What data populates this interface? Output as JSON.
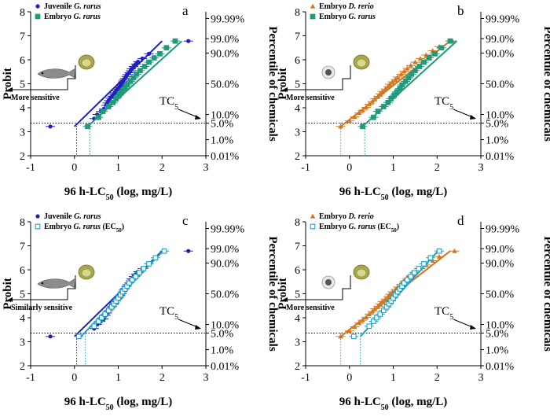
{
  "colors": {
    "juvenile_gr": "#1f1fbf",
    "embryo_gr": "#1f9b7a",
    "embryo_gr_ec50": "#1ba4c4",
    "embryo_dr": "#d2771f"
  },
  "chart_data": [
    {
      "type": "scatter",
      "panel_letter": "a",
      "xlabel": "96 h-LC",
      "xlabel_sub": "50",
      "xlabel_tail": " (log, mg/L)",
      "ylabel": "Probit",
      "ylabel_right": "Percentile of chemicals",
      "xlim": [
        -1,
        3
      ],
      "ylim": [
        2,
        8
      ],
      "xticks": [
        "-1",
        "0",
        "1",
        "2",
        "3"
      ],
      "yticks": [
        "2",
        "3",
        "4",
        "5",
        "6",
        "7",
        "8"
      ],
      "right_ticks": [
        {
          "probit": 7.72,
          "label": "99.99%"
        },
        {
          "probit": 6.88,
          "label": "99.0%"
        },
        {
          "probit": 6.28,
          "label": "90.0%"
        },
        {
          "probit": 5.0,
          "label": "50.0%"
        },
        {
          "probit": 3.72,
          "label": "10.0%"
        },
        {
          "probit": 3.36,
          "label": "5.0%"
        },
        {
          "probit": 2.67,
          "label": "1.0%"
        },
        {
          "probit": 2.0,
          "label": "0.01%"
        }
      ],
      "tc_label": "TC",
      "tc_sub": "5",
      "annotation": "More sensitive",
      "icons": [
        "fish-icon",
        "embryo-icon"
      ],
      "series": [
        {
          "name_prefix": "Juvenile ",
          "name_italic": "G. rarus",
          "name_suffix": "",
          "marker": "circle",
          "filled": true,
          "color": "#1f1fbf",
          "x": [
            -0.55,
            0.45,
            0.52,
            0.6,
            0.67,
            0.72,
            0.75,
            0.78,
            0.82,
            0.86,
            0.9,
            0.92,
            0.95,
            0.98,
            1.02,
            1.05,
            1.08,
            1.1,
            1.12,
            1.15,
            1.18,
            1.2,
            1.25,
            1.28,
            1.3,
            1.35,
            1.4,
            1.45,
            1.55,
            1.7,
            2.6
          ],
          "y": [
            3.22,
            3.55,
            3.72,
            3.85,
            3.95,
            4.1,
            4.2,
            4.3,
            4.4,
            4.48,
            4.56,
            4.62,
            4.7,
            4.78,
            4.85,
            4.92,
            5.0,
            5.08,
            5.15,
            5.22,
            5.3,
            5.38,
            5.46,
            5.54,
            5.62,
            5.72,
            5.82,
            5.92,
            6.05,
            6.25,
            6.78
          ],
          "fit": [
            [
              0.0,
              3.22
            ],
            [
              2.0,
              6.78
            ]
          ],
          "tc_x": 0.05
        },
        {
          "name_prefix": "Embryo ",
          "name_italic": "G. rarus",
          "name_suffix": "",
          "marker": "square",
          "filled": true,
          "color": "#1f9b7a",
          "x": [
            0.3,
            0.55,
            0.65,
            0.78,
            0.88,
            0.95,
            1.02,
            1.08,
            1.15,
            1.2,
            1.28,
            1.35,
            1.42,
            1.5,
            1.6,
            1.7,
            1.82,
            1.95,
            2.1,
            2.3
          ],
          "y": [
            3.22,
            3.6,
            3.85,
            4.05,
            4.22,
            4.38,
            4.52,
            4.66,
            4.8,
            4.95,
            5.1,
            5.25,
            5.4,
            5.55,
            5.72,
            5.9,
            6.08,
            6.25,
            6.5,
            6.78
          ],
          "fit": [
            [
              0.3,
              3.22
            ],
            [
              2.45,
              6.78
            ]
          ],
          "tc_x": 0.35
        }
      ]
    },
    {
      "type": "scatter",
      "panel_letter": "b",
      "xlabel": "96 h-LC",
      "xlabel_sub": "50",
      "xlabel_tail": " (log, mg/L)",
      "ylabel": "Probit",
      "ylabel_right": "Percentile of chemicals",
      "xlim": [
        -1,
        3
      ],
      "ylim": [
        2,
        8
      ],
      "xticks": [
        "-1",
        "0",
        "1",
        "2",
        "3"
      ],
      "yticks": [
        "2",
        "3",
        "4",
        "5",
        "6",
        "7",
        "8"
      ],
      "right_ticks": [
        {
          "probit": 7.72,
          "label": "99.99%"
        },
        {
          "probit": 6.88,
          "label": "99.0%"
        },
        {
          "probit": 6.28,
          "label": "90.0%"
        },
        {
          "probit": 5.0,
          "label": "50.0%"
        },
        {
          "probit": 3.72,
          "label": "10.0%"
        },
        {
          "probit": 3.36,
          "label": "5.0%"
        },
        {
          "probit": 2.67,
          "label": "1.0%"
        },
        {
          "probit": 2.0,
          "label": "0.01%"
        }
      ],
      "tc_label": "TC",
      "tc_sub": "5",
      "annotation": "More sensitive",
      "icons": [
        "embryo-dr-icon",
        "embryo-icon"
      ],
      "series": [
        {
          "name_prefix": "Embryo ",
          "name_italic": "D. rerio",
          "name_suffix": "",
          "marker": "triangle",
          "filled": true,
          "color": "#d2771f",
          "x": [
            -0.2,
            0.0,
            0.12,
            0.22,
            0.3,
            0.38,
            0.45,
            0.52,
            0.58,
            0.65,
            0.7,
            0.75,
            0.82,
            0.88,
            0.92,
            0.98,
            1.05,
            1.1,
            1.18,
            1.25,
            1.32,
            1.4,
            1.5,
            1.62,
            1.75,
            1.9,
            2.05,
            2.35
          ],
          "y": [
            3.22,
            3.45,
            3.62,
            3.78,
            3.9,
            4.02,
            4.15,
            4.26,
            4.38,
            4.48,
            4.58,
            4.68,
            4.78,
            4.88,
            4.98,
            5.08,
            5.18,
            5.28,
            5.4,
            5.52,
            5.64,
            5.76,
            5.9,
            6.05,
            6.2,
            6.38,
            6.55,
            6.78
          ],
          "fit": [
            [
              -0.2,
              3.22
            ],
            [
              2.3,
              6.78
            ]
          ],
          "tc_x": -0.2
        },
        {
          "name_prefix": "Embryo ",
          "name_italic": "G. rarus",
          "name_suffix": "",
          "marker": "square",
          "filled": true,
          "color": "#1f9b7a",
          "x": [
            0.3,
            0.55,
            0.65,
            0.78,
            0.88,
            0.95,
            1.02,
            1.08,
            1.15,
            1.2,
            1.28,
            1.35,
            1.42,
            1.5,
            1.6,
            1.7,
            1.82,
            1.95,
            2.1,
            2.3
          ],
          "y": [
            3.22,
            3.6,
            3.85,
            4.05,
            4.22,
            4.38,
            4.52,
            4.66,
            4.8,
            4.95,
            5.1,
            5.25,
            5.4,
            5.55,
            5.72,
            5.9,
            6.08,
            6.25,
            6.5,
            6.78
          ],
          "fit": [
            [
              0.3,
              3.22
            ],
            [
              2.45,
              6.78
            ]
          ],
          "tc_x": 0.35
        }
      ]
    },
    {
      "type": "scatter",
      "panel_letter": "c",
      "xlabel": "96 h-LC",
      "xlabel_sub": "50",
      "xlabel_tail": " (log, mg/L)",
      "ylabel": "Probit",
      "ylabel_right": "Percentile of chemicals",
      "xlim": [
        -1,
        3
      ],
      "ylim": [
        2,
        8
      ],
      "xticks": [
        "-1",
        "0",
        "1",
        "2",
        "3"
      ],
      "yticks": [
        "2",
        "3",
        "4",
        "5",
        "6",
        "7",
        "8"
      ],
      "right_ticks": [
        {
          "probit": 7.72,
          "label": "99.99%"
        },
        {
          "probit": 6.88,
          "label": "99.0%"
        },
        {
          "probit": 6.28,
          "label": "90.0%"
        },
        {
          "probit": 5.0,
          "label": "50.0%"
        },
        {
          "probit": 3.72,
          "label": "10.0%"
        },
        {
          "probit": 3.36,
          "label": "5.0%"
        },
        {
          "probit": 2.67,
          "label": "1.0%"
        },
        {
          "probit": 2.0,
          "label": "0.01%"
        }
      ],
      "tc_label": "TC",
      "tc_sub": "5",
      "annotation": "Similarly sensitive",
      "icons": [
        "fish-icon",
        "embryo-icon"
      ],
      "series": [
        {
          "name_prefix": "Juvenile ",
          "name_italic": "G. rarus",
          "name_suffix": "",
          "marker": "circle",
          "filled": true,
          "color": "#1f1fbf",
          "x": [
            -0.55,
            0.45,
            0.52,
            0.6,
            0.67,
            0.72,
            0.75,
            0.78,
            0.82,
            0.86,
            0.9,
            0.92,
            0.95,
            0.98,
            1.02,
            1.05,
            1.08,
            1.1,
            1.12,
            1.15,
            1.18,
            1.2,
            1.25,
            1.28,
            1.3,
            1.35,
            1.4,
            1.45,
            1.55,
            1.7,
            2.6
          ],
          "y": [
            3.22,
            3.55,
            3.72,
            3.85,
            3.95,
            4.1,
            4.2,
            4.3,
            4.4,
            4.48,
            4.56,
            4.62,
            4.7,
            4.78,
            4.85,
            4.92,
            5.0,
            5.08,
            5.15,
            5.22,
            5.3,
            5.38,
            5.46,
            5.54,
            5.62,
            5.72,
            5.82,
            5.92,
            6.05,
            6.25,
            6.78
          ],
          "fit": [
            [
              0.0,
              3.22
            ],
            [
              2.0,
              6.78
            ]
          ],
          "tc_x": 0.05
        },
        {
          "name_prefix": "Embryo ",
          "name_italic": "G. rarus",
          "name_suffix": " (EC",
          "name_sub": "50",
          "name_close": ")",
          "marker": "square",
          "filled": false,
          "color": "#1ba4c4",
          "x": [
            0.1,
            0.45,
            0.55,
            0.62,
            0.7,
            0.78,
            0.85,
            0.9,
            0.95,
            1.0,
            1.05,
            1.1,
            1.15,
            1.2,
            1.25,
            1.32,
            1.4,
            1.48,
            1.58,
            1.7,
            1.85,
            2.05
          ],
          "y": [
            3.22,
            3.65,
            3.85,
            4.0,
            4.15,
            4.3,
            4.45,
            4.58,
            4.7,
            4.82,
            4.95,
            5.08,
            5.2,
            5.32,
            5.45,
            5.58,
            5.72,
            5.88,
            6.05,
            6.25,
            6.5,
            6.78
          ],
          "fit": [
            [
              0.15,
              3.22
            ],
            [
              2.02,
              6.78
            ]
          ],
          "tc_x": 0.25
        }
      ]
    },
    {
      "type": "scatter",
      "panel_letter": "d",
      "xlabel": "96 h-LC",
      "xlabel_sub": "50",
      "xlabel_tail": " (log, mg/L)",
      "ylabel": "Probit",
      "ylabel_right": "Percentile of chemicals",
      "xlim": [
        -1,
        3
      ],
      "ylim": [
        2,
        8
      ],
      "xticks": [
        "-1",
        "0",
        "1",
        "2",
        "3"
      ],
      "yticks": [
        "2",
        "3",
        "4",
        "5",
        "6",
        "7",
        "8"
      ],
      "right_ticks": [
        {
          "probit": 7.72,
          "label": "99.99%"
        },
        {
          "probit": 6.88,
          "label": "99.0%"
        },
        {
          "probit": 6.28,
          "label": "90.0%"
        },
        {
          "probit": 5.0,
          "label": "50.0%"
        },
        {
          "probit": 3.72,
          "label": "10.0%"
        },
        {
          "probit": 3.36,
          "label": "5.0%"
        },
        {
          "probit": 2.67,
          "label": "1.0%"
        },
        {
          "probit": 2.0,
          "label": "0.01%"
        }
      ],
      "tc_label": "TC",
      "tc_sub": "5",
      "annotation": "More sensitive",
      "icons": [
        "embryo-dr-icon",
        "embryo-icon"
      ],
      "series": [
        {
          "name_prefix": "Embryo ",
          "name_italic": "D. rerio",
          "name_suffix": "",
          "marker": "triangle",
          "filled": true,
          "color": "#d2771f",
          "x": [
            -0.2,
            0.0,
            0.12,
            0.22,
            0.3,
            0.38,
            0.45,
            0.52,
            0.58,
            0.65,
            0.7,
            0.75,
            0.82,
            0.88,
            0.92,
            0.98,
            1.05,
            1.1,
            1.18,
            1.25,
            1.32,
            1.4,
            1.5,
            1.62,
            1.75,
            1.9,
            2.05,
            2.4
          ],
          "y": [
            3.22,
            3.45,
            3.62,
            3.78,
            3.9,
            4.02,
            4.15,
            4.26,
            4.38,
            4.48,
            4.58,
            4.68,
            4.78,
            4.88,
            4.98,
            5.08,
            5.18,
            5.28,
            5.4,
            5.52,
            5.64,
            5.76,
            5.9,
            6.05,
            6.2,
            6.38,
            6.55,
            6.78
          ],
          "fit": [
            [
              -0.2,
              3.22
            ],
            [
              2.3,
              6.78
            ]
          ],
          "tc_x": -0.2
        },
        {
          "name_prefix": "Embryo ",
          "name_italic": "G. rarus",
          "name_suffix": " (EC",
          "name_sub": "50",
          "name_close": ")",
          "marker": "square",
          "filled": false,
          "color": "#1ba4c4",
          "x": [
            0.1,
            0.45,
            0.55,
            0.62,
            0.7,
            0.78,
            0.85,
            0.9,
            0.95,
            1.0,
            1.05,
            1.1,
            1.15,
            1.2,
            1.25,
            1.32,
            1.4,
            1.48,
            1.58,
            1.7,
            1.85,
            2.05
          ],
          "y": [
            3.22,
            3.65,
            3.85,
            4.0,
            4.15,
            4.3,
            4.45,
            4.58,
            4.7,
            4.82,
            4.95,
            5.08,
            5.2,
            5.32,
            5.45,
            5.58,
            5.72,
            5.88,
            6.05,
            6.25,
            6.5,
            6.78
          ],
          "fit": [
            [
              0.25,
              3.22
            ],
            [
              2.02,
              6.78
            ]
          ],
          "tc_x": 0.25
        }
      ]
    }
  ]
}
